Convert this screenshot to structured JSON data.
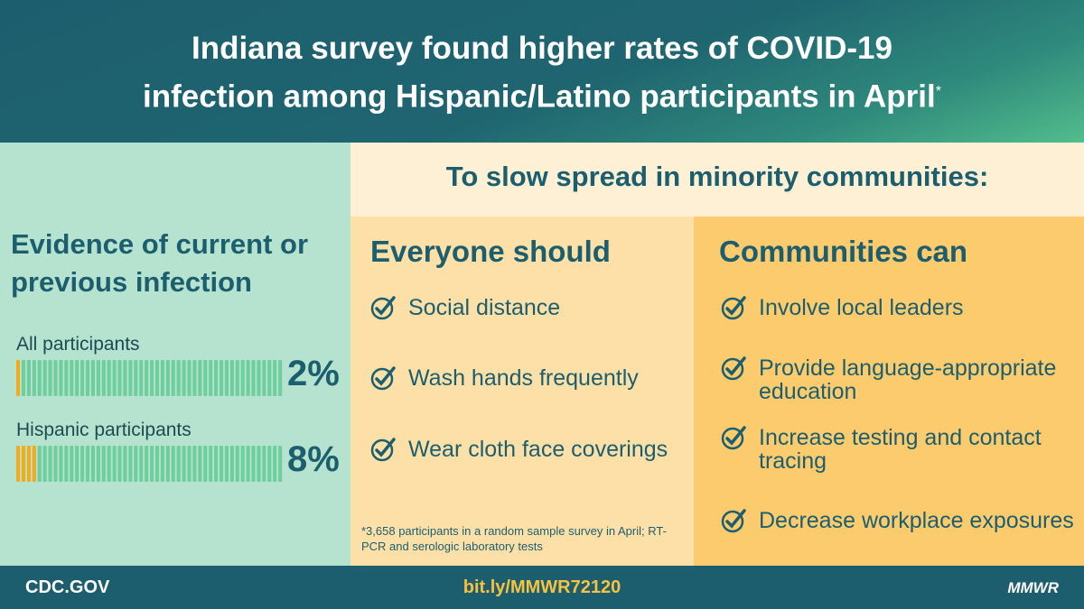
{
  "header": {
    "title_line1": "Indiana survey found higher rates of COVID-19",
    "title_line2": "infection among Hispanic/Latino participants in April",
    "title_mark": "*"
  },
  "evidence": {
    "heading": "Evidence of current or previous infection",
    "items": [
      {
        "label": "All participants",
        "value": 2,
        "value_label": "2%"
      },
      {
        "label": "Hispanic participants",
        "value": 8,
        "value_label": "8%"
      }
    ]
  },
  "actions": {
    "heading": "To slow spread in minority communities:",
    "everyone": {
      "heading": "Everyone should",
      "items": [
        "Social distance",
        "Wash hands frequently",
        "Wear cloth face coverings"
      ]
    },
    "communities": {
      "heading": "Communities can",
      "items": [
        "Involve local leaders",
        "Provide language-appropriate education",
        "Increase testing and contact tracing",
        "Decrease workplace exposures"
      ]
    }
  },
  "footnote": "*3,658 participants in a random sample survey in April; RT-PCR and serologic laboratory tests",
  "footer": {
    "left": "CDC.GOV",
    "center": "bit.ly/MMWR72120",
    "right": "MMWR"
  }
}
